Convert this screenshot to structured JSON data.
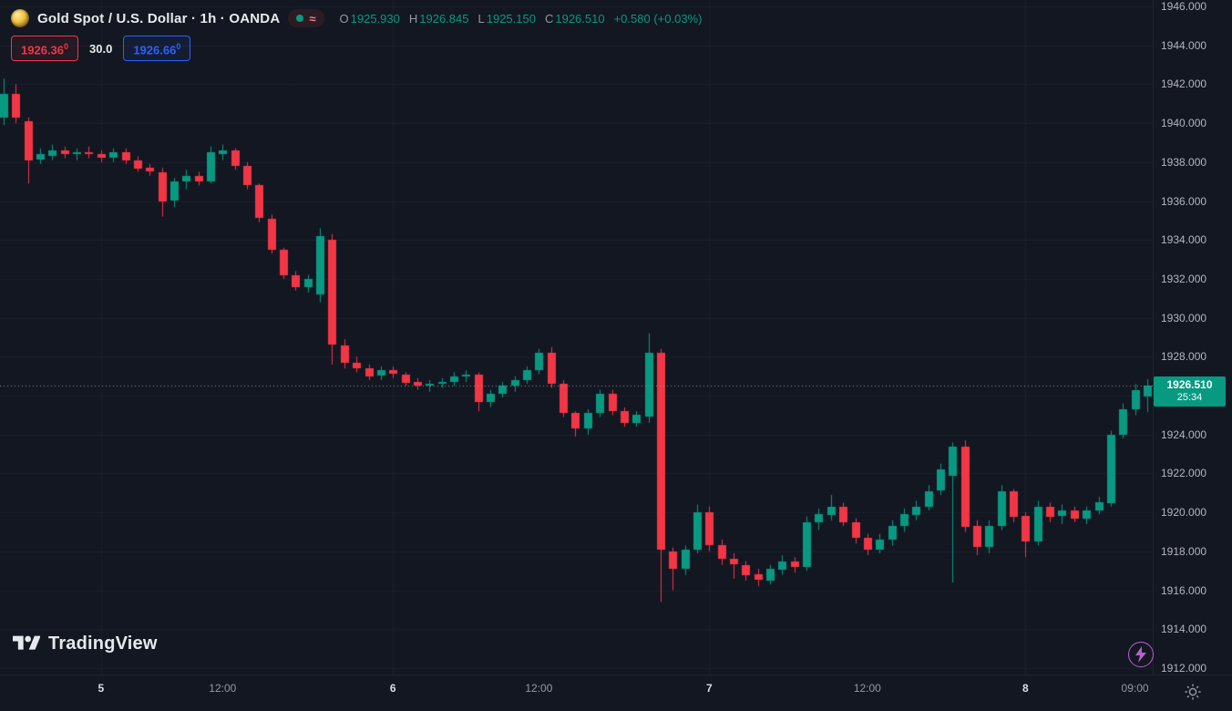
{
  "colors": {
    "up": "#089981",
    "down": "#f23645",
    "blue": "#2962ff",
    "purple": "#b95fd0",
    "background": "#131722",
    "axis_text": "#b2b5be",
    "title_text": "#e9eaec"
  },
  "header": {
    "symbol_title": "Gold Spot / U.S. Dollar · 1h · OANDA",
    "status": {
      "delayed_symbol": "≈"
    },
    "ohlc": {
      "o_label": "O",
      "o": "1925.930",
      "h_label": "H",
      "h": "1926.845",
      "l_label": "L",
      "l": "1925.150",
      "c_label": "C",
      "c": "1926.510",
      "change": "+0.580 (+0.03%)"
    },
    "badges": {
      "bid_main": "1926.36",
      "bid_sup": "0",
      "spread": "30.0",
      "ask_main": "1926.66",
      "ask_sup": "0"
    }
  },
  "price_scale": {
    "labels": [
      "1946.000",
      "1944.000",
      "1942.000",
      "1940.000",
      "1938.000",
      "1936.000",
      "1934.000",
      "1932.000",
      "1930.000",
      "1928.000",
      "1926.000",
      "1924.000",
      "1922.000",
      "1920.000",
      "1918.000",
      "1916.000",
      "1914.000",
      "1912.000"
    ],
    "current": {
      "price": "1926.510",
      "countdown": "25:34"
    }
  },
  "footer": {
    "logo_text": "TradingView"
  },
  "chart_data": {
    "type": "candlestick",
    "title": "Gold Spot / U.S. Dollar",
    "symbol": "XAU/USD",
    "interval": "1h",
    "exchange": "OANDA",
    "ylim": [
      1912,
      1946
    ],
    "grid": "faint",
    "last_price": 1926.51,
    "time_labels": [
      {
        "i": 8,
        "text": "5",
        "major": true
      },
      {
        "i": 18,
        "text": "12:00",
        "major": false
      },
      {
        "i": 32,
        "text": "6",
        "major": true
      },
      {
        "i": 44,
        "text": "12:00",
        "major": false
      },
      {
        "i": 58,
        "text": "7",
        "major": true
      },
      {
        "i": 71,
        "text": "12:00",
        "major": false
      },
      {
        "i": 84,
        "text": "8",
        "major": true
      },
      {
        "i": 93,
        "text": "09:00",
        "major": false
      }
    ],
    "candles": [
      [
        1940.3,
        1942.3,
        1939.9,
        1941.5
      ],
      [
        1941.5,
        1942.0,
        1940.0,
        1940.3
      ],
      [
        1940.1,
        1940.3,
        1936.9,
        1938.1
      ],
      [
        1938.1,
        1938.7,
        1937.9,
        1938.4
      ],
      [
        1938.3,
        1938.9,
        1938.1,
        1938.6
      ],
      [
        1938.6,
        1938.8,
        1938.2,
        1938.4
      ],
      [
        1938.4,
        1938.7,
        1938.1,
        1938.5
      ],
      [
        1938.5,
        1938.8,
        1938.2,
        1938.4
      ],
      [
        1938.4,
        1938.6,
        1938.0,
        1938.2
      ],
      [
        1938.2,
        1938.7,
        1938.0,
        1938.5
      ],
      [
        1938.5,
        1938.7,
        1937.9,
        1938.1
      ],
      [
        1938.1,
        1938.3,
        1937.5,
        1937.7
      ],
      [
        1937.7,
        1937.9,
        1937.3,
        1937.5
      ],
      [
        1937.5,
        1937.7,
        1935.2,
        1936.0
      ],
      [
        1936.0,
        1937.2,
        1935.7,
        1937.0
      ],
      [
        1937.0,
        1937.6,
        1936.6,
        1937.3
      ],
      [
        1937.3,
        1937.5,
        1936.8,
        1937.0
      ],
      [
        1937.0,
        1938.8,
        1936.9,
        1938.5
      ],
      [
        1938.4,
        1938.9,
        1938.1,
        1938.6
      ],
      [
        1938.6,
        1938.7,
        1937.6,
        1937.8
      ],
      [
        1937.8,
        1938.0,
        1936.6,
        1936.8
      ],
      [
        1936.8,
        1936.9,
        1934.9,
        1935.1
      ],
      [
        1935.1,
        1935.3,
        1933.3,
        1933.5
      ],
      [
        1933.5,
        1933.6,
        1932.0,
        1932.2
      ],
      [
        1932.2,
        1932.4,
        1931.4,
        1931.6
      ],
      [
        1931.6,
        1932.2,
        1931.3,
        1932.0
      ],
      [
        1931.2,
        1934.6,
        1930.8,
        1934.2
      ],
      [
        1934.0,
        1934.3,
        1927.6,
        1928.6
      ],
      [
        1928.6,
        1928.9,
        1927.4,
        1927.7
      ],
      [
        1927.7,
        1928.0,
        1927.2,
        1927.4
      ],
      [
        1927.4,
        1927.6,
        1926.8,
        1927.0
      ],
      [
        1927.0,
        1927.5,
        1926.8,
        1927.3
      ],
      [
        1927.3,
        1927.5,
        1926.9,
        1927.1
      ],
      [
        1927.1,
        1927.2,
        1926.5,
        1926.7
      ],
      [
        1926.7,
        1926.9,
        1926.3,
        1926.5
      ],
      [
        1926.5,
        1926.8,
        1926.2,
        1926.6
      ],
      [
        1926.6,
        1926.9,
        1926.4,
        1926.7
      ],
      [
        1926.7,
        1927.2,
        1926.5,
        1927.0
      ],
      [
        1927.0,
        1927.3,
        1926.7,
        1927.1
      ],
      [
        1927.1,
        1927.2,
        1925.2,
        1925.7
      ],
      [
        1925.7,
        1926.3,
        1925.4,
        1926.1
      ],
      [
        1926.1,
        1926.7,
        1925.9,
        1926.5
      ],
      [
        1926.5,
        1927.0,
        1926.2,
        1926.8
      ],
      [
        1926.8,
        1927.5,
        1926.6,
        1927.3
      ],
      [
        1927.3,
        1928.4,
        1927.1,
        1928.2
      ],
      [
        1928.2,
        1928.5,
        1926.4,
        1926.6
      ],
      [
        1926.6,
        1926.8,
        1924.9,
        1925.1
      ],
      [
        1925.1,
        1925.2,
        1923.9,
        1924.3
      ],
      [
        1924.3,
        1925.3,
        1924.0,
        1925.1
      ],
      [
        1925.1,
        1926.3,
        1924.9,
        1926.1
      ],
      [
        1926.1,
        1926.3,
        1925.0,
        1925.2
      ],
      [
        1925.2,
        1925.4,
        1924.4,
        1924.6
      ],
      [
        1924.6,
        1925.2,
        1924.4,
        1925.0
      ],
      [
        1924.9,
        1929.2,
        1924.6,
        1928.2
      ],
      [
        1928.2,
        1928.4,
        1915.4,
        1918.1
      ],
      [
        1918.0,
        1918.2,
        1916.0,
        1917.1
      ],
      [
        1917.1,
        1918.3,
        1916.8,
        1918.1
      ],
      [
        1918.1,
        1920.4,
        1917.9,
        1920.0
      ],
      [
        1920.0,
        1920.3,
        1918.0,
        1918.3
      ],
      [
        1918.3,
        1918.6,
        1917.3,
        1917.6
      ],
      [
        1917.6,
        1917.9,
        1916.6,
        1917.3
      ],
      [
        1917.3,
        1917.5,
        1916.5,
        1916.8
      ],
      [
        1916.8,
        1917.1,
        1916.2,
        1916.5
      ],
      [
        1916.5,
        1917.3,
        1916.3,
        1917.1
      ],
      [
        1917.1,
        1917.8,
        1916.8,
        1917.5
      ],
      [
        1917.5,
        1917.7,
        1916.9,
        1917.2
      ],
      [
        1917.2,
        1919.8,
        1917.0,
        1919.5
      ],
      [
        1919.5,
        1920.2,
        1919.1,
        1919.9
      ],
      [
        1919.9,
        1920.9,
        1919.6,
        1920.3
      ],
      [
        1920.3,
        1920.5,
        1919.3,
        1919.5
      ],
      [
        1919.5,
        1919.7,
        1918.4,
        1918.7
      ],
      [
        1918.7,
        1918.9,
        1917.8,
        1918.1
      ],
      [
        1918.1,
        1918.9,
        1917.9,
        1918.6
      ],
      [
        1918.6,
        1919.6,
        1918.3,
        1919.3
      ],
      [
        1919.3,
        1920.2,
        1919.0,
        1919.9
      ],
      [
        1919.9,
        1920.6,
        1919.6,
        1920.3
      ],
      [
        1920.3,
        1921.4,
        1920.1,
        1921.1
      ],
      [
        1921.1,
        1922.5,
        1920.9,
        1922.2
      ],
      [
        1921.9,
        1923.6,
        1916.4,
        1923.4
      ],
      [
        1923.4,
        1923.7,
        1919.0,
        1919.3
      ],
      [
        1919.3,
        1919.6,
        1917.8,
        1918.2
      ],
      [
        1918.2,
        1919.6,
        1917.9,
        1919.3
      ],
      [
        1919.3,
        1921.4,
        1919.1,
        1921.1
      ],
      [
        1921.1,
        1921.2,
        1919.5,
        1919.8
      ],
      [
        1919.8,
        1920.0,
        1917.7,
        1918.5
      ],
      [
        1918.5,
        1920.6,
        1918.3,
        1920.3
      ],
      [
        1920.3,
        1920.5,
        1919.5,
        1919.8
      ],
      [
        1919.8,
        1920.4,
        1919.4,
        1920.1
      ],
      [
        1920.1,
        1920.3,
        1919.5,
        1919.7
      ],
      [
        1919.7,
        1920.3,
        1919.4,
        1920.1
      ],
      [
        1920.1,
        1920.8,
        1919.9,
        1920.5
      ],
      [
        1920.5,
        1924.2,
        1920.3,
        1924.0
      ],
      [
        1924.0,
        1925.6,
        1923.8,
        1925.3
      ],
      [
        1925.3,
        1926.6,
        1925.0,
        1926.3
      ],
      [
        1925.93,
        1926.845,
        1925.15,
        1926.51
      ]
    ]
  }
}
